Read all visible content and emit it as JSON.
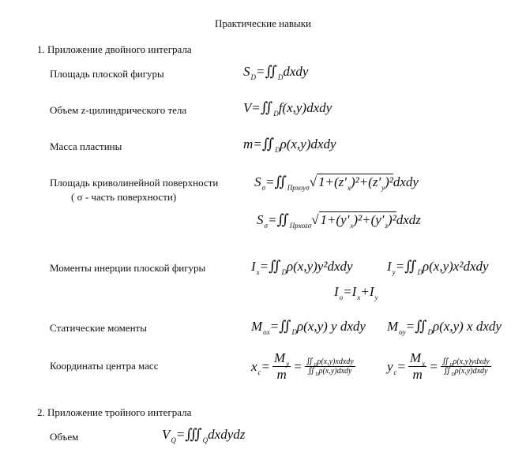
{
  "title": "Практические навыки",
  "section1": "1. Приложение двойного интеграла",
  "section2": "2. Приложение тройного интеграла",
  "labels": {
    "area": "Площадь плоской фигуры",
    "volume": "Объем z-цилиндрического тела",
    "mass": "Масса пластины",
    "surface": "Площадь криволинейной поверхности",
    "surface_note": "( σ - часть поверхности)",
    "inertia": "Моменты инерции плоской фигуры",
    "static": "Статические моменты",
    "center": "Координаты центра масс",
    "volume3": "Объем"
  },
  "formulas": {
    "area": [
      [
        "S",
        "D"
      ],
      [
        "="
      ],
      [
        "∬",
        "D",
        "int"
      ],
      [
        "dxdy"
      ]
    ],
    "volume": [
      [
        "V"
      ],
      [
        "="
      ],
      [
        "∬",
        "D",
        "int"
      ],
      [
        "f(x,y)dxdy"
      ]
    ],
    "mass": [
      [
        "m"
      ],
      [
        "="
      ],
      [
        "∬",
        "D",
        "int"
      ],
      [
        "ρ(x,y)dxdy"
      ]
    ],
    "surf1": [
      [
        "S",
        "σ"
      ],
      [
        "="
      ],
      [
        "∬",
        "Прxoyσ",
        "int"
      ],
      [
        "√",
        "",
        "sqrt"
      ],
      [
        "1+(z'",
        "x"
      ],
      [
        ")²+(z'",
        "y"
      ],
      [
        ")²",
        "",
        "end"
      ],
      [
        "dxdy"
      ]
    ],
    "surf2": [
      [
        "S",
        "σ"
      ],
      [
        "="
      ],
      [
        "∬",
        "Прxozσ",
        "int"
      ],
      [
        "√",
        "",
        "sqrt"
      ],
      [
        "1+(y'",
        "x"
      ],
      [
        ")²+(y'",
        "z"
      ],
      [
        ")²",
        "",
        "end"
      ],
      [
        "dxdz"
      ]
    ],
    "ix": [
      [
        "I",
        "x"
      ],
      [
        "="
      ],
      [
        "∬",
        "D",
        "int"
      ],
      [
        "ρ(x,y)y²dxdy"
      ]
    ],
    "iy": [
      [
        "I",
        "y"
      ],
      [
        "="
      ],
      [
        "∬",
        "D",
        "int"
      ],
      [
        "ρ(x,y)x²dxdy"
      ]
    ],
    "i0": [
      [
        "I",
        "o"
      ],
      [
        "="
      ],
      [
        "I",
        "x"
      ],
      [
        "+"
      ],
      [
        "I",
        "y"
      ]
    ],
    "mox": [
      [
        "M",
        "ox"
      ],
      [
        "="
      ],
      [
        "∬",
        "D",
        "int"
      ],
      [
        "ρ(x,y) y dxdy"
      ]
    ],
    "moy": [
      [
        "M",
        "oy"
      ],
      [
        "="
      ],
      [
        "∬",
        "D",
        "int"
      ],
      [
        "ρ(x,y) x dxdy"
      ]
    ],
    "xc": {
      "lhs": [
        [
          "x",
          "c"
        ],
        [
          "="
        ]
      ],
      "f1": {
        "num": [
          [
            "M",
            "y"
          ]
        ],
        "den": [
          [
            "m"
          ]
        ]
      },
      "eq": [
        [
          "="
        ]
      ],
      "f2": {
        "num": [
          [
            "∬",
            "D",
            "int"
          ],
          [
            "ρ(x,y)xdxdy"
          ]
        ],
        "den": [
          [
            "∬",
            "D",
            "int"
          ],
          [
            "ρ(x,y)dxdy"
          ]
        ]
      }
    },
    "yc": {
      "lhs": [
        [
          "y",
          "c"
        ],
        [
          "="
        ]
      ],
      "f1": {
        "num": [
          [
            "M",
            "x"
          ]
        ],
        "den": [
          [
            "m"
          ]
        ]
      },
      "eq": [
        [
          "="
        ]
      ],
      "f2": {
        "num": [
          [
            "∬",
            "D",
            "int"
          ],
          [
            "ρ(x,y)ydxdy"
          ]
        ],
        "den": [
          [
            "∬",
            "D",
            "int"
          ],
          [
            "ρ(x,y)dxdy"
          ]
        ]
      }
    },
    "vq": [
      [
        "V",
        "Q"
      ],
      [
        "="
      ],
      [
        "∭",
        "Q",
        "int"
      ],
      [
        "dxdydz"
      ]
    ]
  }
}
